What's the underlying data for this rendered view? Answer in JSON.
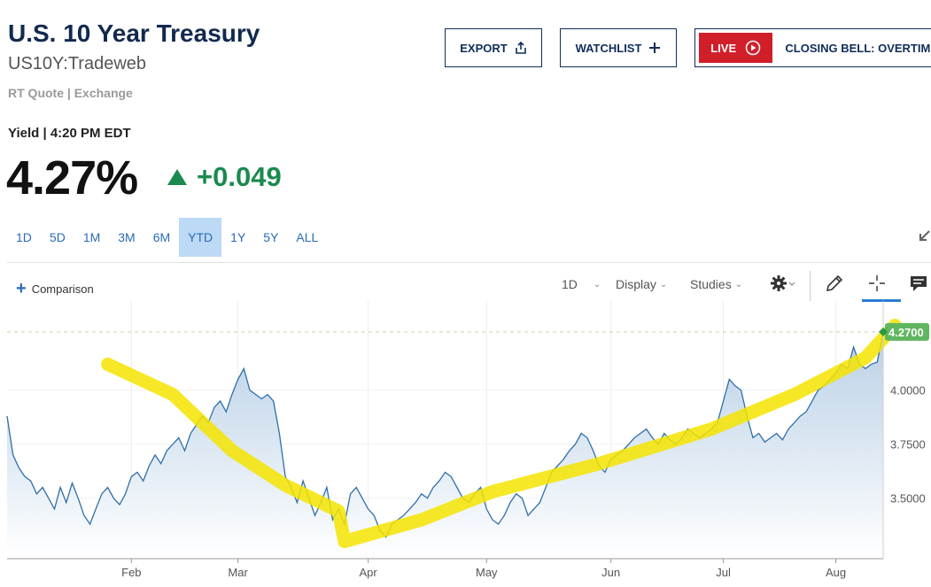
{
  "header": {
    "title": "U.S. 10 Year Treasury",
    "symbol": "US10Y:Tradeweb",
    "quote_source": "RT Quote | Exchange"
  },
  "buttons": {
    "export": "EXPORT",
    "watchlist": "WATCHLIST",
    "live_badge": "LIVE",
    "live_text": "CLOSING BELL: OVERTIME"
  },
  "quote": {
    "yield_label": "Yield | 4:20 PM EDT",
    "value": "4.27%",
    "change": "+0.049"
  },
  "range_tabs": [
    "1D",
    "5D",
    "1M",
    "3M",
    "6M",
    "YTD",
    "1Y",
    "5Y",
    "ALL"
  ],
  "active_range": "YTD",
  "toolbar": {
    "comparison": "Comparison",
    "interval": "1D",
    "display": "Display",
    "studies": "Studies"
  },
  "colors": {
    "brand_navy": "#12294f",
    "positive": "#1a8a4e",
    "live_red": "#d11f2a",
    "line": "#2f6fa8",
    "highlight": "#f5e400",
    "price_tag": "#5fb65f"
  },
  "icons": [
    "share-icon",
    "plus-icon",
    "play-circle-icon",
    "gear-icon",
    "pencil-icon",
    "crosshair-icon",
    "comment-icon",
    "expand-arrow-icon",
    "up-triangle-icon"
  ],
  "chart_data": {
    "type": "area",
    "x_unit": "2025 trading day index",
    "x_tick_labels": [
      "Feb",
      "Mar",
      "Apr",
      "May",
      "Jun",
      "Jul",
      "Aug"
    ],
    "x_tick_positions": [
      21,
      39,
      61,
      81,
      102,
      121,
      140
    ],
    "y_ticks": [
      "3.5000",
      "3.7500",
      "4.0000"
    ],
    "ylim": [
      3.22,
      4.38
    ],
    "last_value_label": "4.2700",
    "last_value": 4.27,
    "series": [
      {
        "values": [
          3.88,
          3.7,
          3.64,
          3.6,
          3.58,
          3.52,
          3.55,
          3.5,
          3.45,
          3.55,
          3.48,
          3.57,
          3.5,
          3.42,
          3.38,
          3.45,
          3.52,
          3.55,
          3.5,
          3.47,
          3.52,
          3.6,
          3.62,
          3.58,
          3.65,
          3.7,
          3.66,
          3.72,
          3.75,
          3.78,
          3.72,
          3.8,
          3.84,
          3.88,
          3.85,
          3.92,
          3.95,
          3.9,
          3.98,
          4.05,
          4.1,
          4.0,
          3.98,
          3.96,
          3.98,
          3.95,
          3.8,
          3.6,
          3.55,
          3.48,
          3.58,
          3.5,
          3.42,
          3.48,
          3.55,
          3.4,
          3.45,
          3.38,
          3.52,
          3.55,
          3.5,
          3.45,
          3.42,
          3.35,
          3.32,
          3.38,
          3.4,
          3.42,
          3.45,
          3.48,
          3.52,
          3.5,
          3.55,
          3.58,
          3.62,
          3.6,
          3.55,
          3.5,
          3.48,
          3.52,
          3.55,
          3.45,
          3.4,
          3.38,
          3.42,
          3.48,
          3.52,
          3.5,
          3.42,
          3.45,
          3.48,
          3.55,
          3.62,
          3.65,
          3.68,
          3.72,
          3.75,
          3.8,
          3.78,
          3.72,
          3.65,
          3.62,
          3.68,
          3.7,
          3.72,
          3.75,
          3.78,
          3.8,
          3.82,
          3.78,
          3.75,
          3.8,
          3.77,
          3.75,
          3.78,
          3.82,
          3.8,
          3.78,
          3.8,
          3.82,
          3.85,
          3.95,
          4.05,
          4.02,
          4.0,
          3.88,
          3.78,
          3.8,
          3.76,
          3.78,
          3.8,
          3.77,
          3.82,
          3.85,
          3.88,
          3.9,
          3.95,
          4.0,
          4.02,
          4.05,
          4.08,
          4.12,
          4.1,
          4.2,
          4.12,
          4.1,
          4.12,
          4.13,
          4.27
        ]
      }
    ]
  }
}
